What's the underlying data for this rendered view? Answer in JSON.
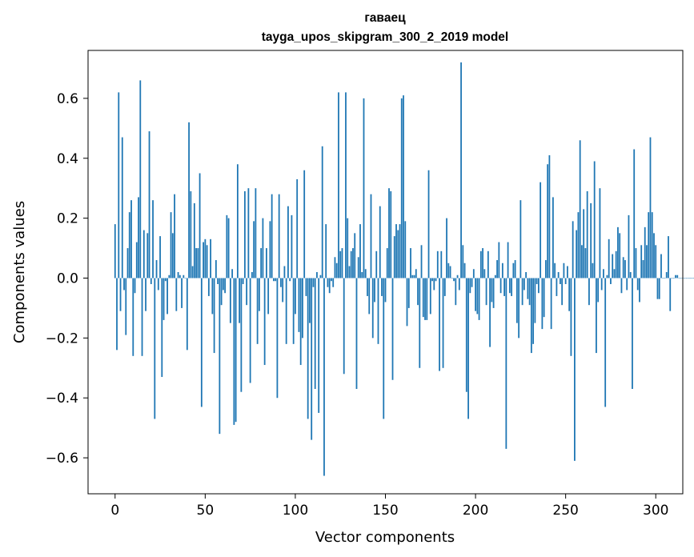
{
  "chart_data": {
    "type": "bar",
    "title": "гавaeц",
    "subtitle": "tayga_upos_skipgram_300_2_2019 model",
    "xlabel": "Vector components",
    "ylabel": "Components values",
    "xlim": [
      -15,
      315
    ],
    "ylim": [
      -0.72,
      0.76
    ],
    "xticks": [
      0,
      50,
      100,
      150,
      200,
      250,
      300
    ],
    "yticks": [
      -0.6,
      -0.4,
      -0.2,
      0.0,
      0.2,
      0.4,
      0.6
    ],
    "ytick_labels": [
      "−0.6",
      "−0.4",
      "−0.2",
      "0.0",
      "0.2",
      "0.4",
      "0.6"
    ],
    "bar_color": "#1f77b4",
    "values": [
      0.18,
      -0.24,
      0.62,
      -0.11,
      0.47,
      -0.04,
      -0.19,
      0.1,
      0.22,
      0.26,
      -0.26,
      -0.05,
      0.12,
      0.27,
      0.66,
      -0.26,
      0.16,
      -0.11,
      0.15,
      0.49,
      -0.02,
      0.26,
      -0.47,
      0.06,
      -0.04,
      0.14,
      -0.33,
      -0.14,
      -0.01,
      -0.12,
      0.01,
      0.22,
      0.15,
      0.28,
      -0.11,
      0.02,
      0.01,
      -0.1,
      0.01,
      0.0,
      -0.24,
      0.52,
      0.29,
      0.04,
      0.25,
      0.1,
      0.1,
      0.35,
      -0.43,
      0.12,
      0.13,
      0.11,
      -0.06,
      0.13,
      -0.12,
      -0.25,
      0.06,
      -0.02,
      -0.52,
      -0.09,
      -0.04,
      -0.05,
      0.21,
      0.2,
      -0.15,
      0.03,
      -0.49,
      -0.48,
      0.38,
      -0.15,
      -0.38,
      -0.02,
      0.29,
      -0.09,
      0.3,
      -0.35,
      0.02,
      0.19,
      0.3,
      -0.22,
      -0.11,
      0.1,
      0.2,
      -0.29,
      0.1,
      -0.12,
      0.19,
      0.28,
      -0.01,
      -0.01,
      -0.4,
      0.28,
      -0.03,
      -0.08,
      0.04,
      -0.22,
      0.24,
      -0.01,
      0.21,
      -0.22,
      -0.12,
      0.33,
      -0.18,
      -0.29,
      -0.2,
      0.36,
      -0.06,
      -0.47,
      -0.15,
      -0.54,
      -0.03,
      -0.37,
      0.02,
      -0.45,
      0.01,
      0.44,
      -0.66,
      0.18,
      -0.03,
      -0.05,
      -0.01,
      -0.03,
      0.07,
      0.05,
      0.62,
      0.09,
      0.1,
      -0.32,
      0.62,
      0.2,
      0.04,
      0.09,
      0.1,
      0.15,
      -0.37,
      0.07,
      0.18,
      0.02,
      0.6,
      0.03,
      -0.06,
      -0.12,
      0.28,
      -0.2,
      -0.08,
      0.09,
      -0.22,
      0.24,
      -0.06,
      -0.47,
      -0.08,
      0.1,
      0.3,
      0.29,
      -0.34,
      0.14,
      0.18,
      0.16,
      0.18,
      0.6,
      0.61,
      0.19,
      -0.16,
      -0.1,
      0.1,
      0.01,
      0.01,
      0.03,
      -0.09,
      -0.3,
      0.11,
      -0.13,
      -0.14,
      -0.14,
      0.36,
      -0.12,
      -0.01,
      -0.04,
      -0.01,
      0.09,
      -0.31,
      0.09,
      -0.3,
      -0.06,
      0.2,
      0.05,
      0.04,
      0.0,
      -0.01,
      -0.09,
      0.01,
      -0.04,
      0.72,
      0.11,
      0.05,
      -0.38,
      -0.47,
      -0.05,
      -0.03,
      0.03,
      -0.11,
      -0.12,
      -0.14,
      0.09,
      0.1,
      0.03,
      -0.09,
      0.09,
      -0.23,
      -0.08,
      -0.1,
      0.01,
      0.06,
      0.12,
      -0.05,
      0.05,
      -0.06,
      -0.57,
      0.12,
      -0.05,
      -0.06,
      0.05,
      0.06,
      -0.15,
      -0.2,
      0.26,
      -0.09,
      -0.04,
      0.02,
      -0.07,
      -0.09,
      -0.25,
      -0.22,
      -0.15,
      -0.02,
      -0.05,
      0.32,
      -0.17,
      -0.13,
      0.06,
      0.38,
      0.41,
      -0.17,
      0.27,
      0.05,
      -0.06,
      0.02,
      -0.02,
      -0.09,
      0.05,
      -0.02,
      0.04,
      -0.11,
      -0.26,
      0.19,
      -0.61,
      0.16,
      0.22,
      0.46,
      0.11,
      0.23,
      0.1,
      0.29,
      -0.09,
      0.25,
      0.05,
      0.39,
      -0.25,
      -0.08,
      0.3,
      -0.04,
      0.03,
      -0.43,
      0.01,
      0.13,
      -0.02,
      0.08,
      0.03,
      0.09,
      0.17,
      0.15,
      -0.05,
      0.07,
      0.06,
      -0.04,
      0.21,
      0.02,
      -0.37,
      0.43,
      0.1,
      -0.04,
      -0.08,
      0.11,
      0.06,
      0.17,
      0.11,
      0.22,
      0.47,
      0.22,
      0.15,
      0.11,
      -0.07,
      -0.07,
      0.08,
      0.0,
      0.0,
      0.02,
      0.14,
      -0.11,
      0.0,
      0.0,
      0.01,
      0.01,
      0.0,
      0.0,
      0.0,
      0.0,
      0.0,
      0.0,
      0.0,
      0.0,
      0.0,
      0.0,
      0.0,
      0.0
    ]
  }
}
